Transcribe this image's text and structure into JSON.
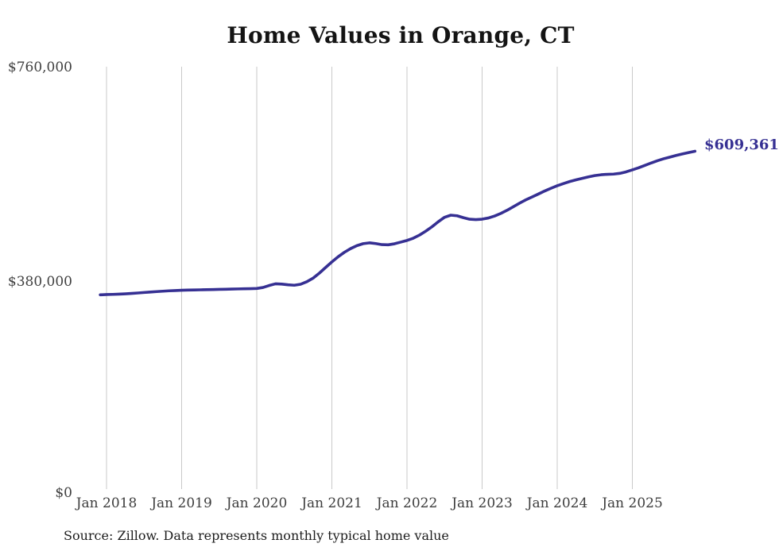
{
  "page": {
    "background": "#ffffff"
  },
  "chart": {
    "title": "Home Values in Orange, CT",
    "source": "Source: Zillow. Data represents monthly typical home value"
  },
  "chart_data": {
    "type": "line",
    "title": "Home Values in Orange, CT",
    "series_name": "Monthly typical home value",
    "start_month": "2017-12",
    "end_month": "2025-11",
    "x_tick_labels": [
      "Jan 2018",
      "Jan 2019",
      "Jan 2020",
      "Jan 2021",
      "Jan 2022",
      "Jan 2023",
      "Jan 2024",
      "Jan 2025"
    ],
    "y_ticks": [
      {
        "label": "$0",
        "value": 0
      },
      {
        "label": "$380,000",
        "value": 380000
      },
      {
        "label": "$760,000",
        "value": 760000
      }
    ],
    "ylim": [
      0,
      760000
    ],
    "grid": "vertical-only",
    "legend": "none",
    "end_label": "$609,361",
    "end_value": 609361,
    "line_color": "#363093",
    "grid_color": "#c9c9c9",
    "values": [
      351000,
      351500,
      351800,
      352200,
      352800,
      353500,
      354300,
      355200,
      356000,
      356800,
      357500,
      358200,
      358700,
      359200,
      359500,
      359800,
      360000,
      360300,
      360500,
      360800,
      361000,
      361300,
      361600,
      361900,
      362100,
      362400,
      364200,
      367800,
      370800,
      370300,
      369000,
      368200,
      370000,
      374500,
      381000,
      390000,
      400200,
      410200,
      419500,
      427500,
      434200,
      439500,
      443000,
      444500,
      443200,
      441300,
      441000,
      442800,
      445800,
      448800,
      452800,
      458500,
      465500,
      473500,
      482500,
      490500,
      494300,
      493200,
      489800,
      487000,
      486400,
      487100,
      489200,
      492800,
      497500,
      503200,
      509500,
      516000,
      522000,
      527200,
      532400,
      537800,
      542700,
      547200,
      551200,
      554800,
      557800,
      560500,
      563200,
      565500,
      567000,
      567800,
      568200,
      569500,
      572200,
      575800,
      579500,
      583800,
      588200,
      592200,
      595800,
      598800,
      601800,
      604500,
      607000,
      609361
    ]
  }
}
